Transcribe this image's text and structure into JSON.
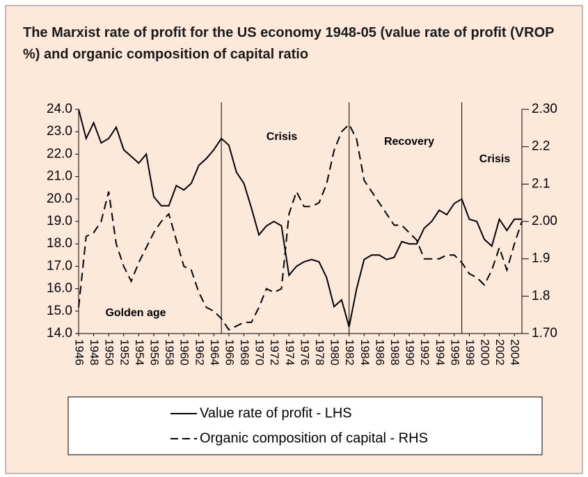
{
  "chart_data": {
    "type": "line",
    "title": "The Marxist rate of profit for the US economy 1948-05 (value rate of profit (VROP %) and organic composition of capital ratio",
    "x": [
      1946,
      1947,
      1948,
      1949,
      1950,
      1951,
      1952,
      1953,
      1954,
      1955,
      1956,
      1957,
      1958,
      1959,
      1960,
      1961,
      1962,
      1963,
      1964,
      1965,
      1966,
      1967,
      1968,
      1969,
      1970,
      1971,
      1972,
      1973,
      1974,
      1975,
      1976,
      1977,
      1978,
      1979,
      1980,
      1981,
      1982,
      1983,
      1984,
      1985,
      1986,
      1987,
      1988,
      1989,
      1990,
      1991,
      1992,
      1993,
      1994,
      1995,
      1996,
      1997,
      1998,
      1999,
      2000,
      2001,
      2002,
      2003,
      2004,
      2005
    ],
    "xlim": [
      1946,
      2005
    ],
    "xticks": [
      1946,
      1948,
      1950,
      1952,
      1954,
      1956,
      1958,
      1960,
      1962,
      1964,
      1966,
      1968,
      1970,
      1972,
      1974,
      1976,
      1978,
      1980,
      1982,
      1984,
      1986,
      1988,
      1990,
      1992,
      1994,
      1996,
      1998,
      2000,
      2002,
      2004
    ],
    "series": [
      {
        "name": "Value rate of profit - LHS",
        "color": "#000000",
        "linestyle": "solid",
        "values": [
          24.0,
          22.7,
          23.4,
          22.5,
          22.7,
          23.2,
          22.2,
          21.9,
          21.6,
          22.0,
          20.1,
          19.7,
          19.7,
          20.6,
          20.4,
          20.7,
          21.5,
          21.8,
          22.2,
          22.7,
          22.4,
          21.2,
          20.7,
          19.6,
          18.4,
          18.8,
          19.0,
          18.8,
          16.6,
          17.0,
          17.2,
          17.3,
          17.2,
          16.5,
          15.2,
          15.5,
          14.3,
          16.0,
          17.3,
          17.5,
          17.5,
          17.3,
          17.4,
          18.1,
          18.0,
          18.0,
          18.7,
          19.0,
          19.5,
          19.3,
          19.8,
          20.0,
          19.1,
          19.0,
          18.2,
          17.9,
          19.1,
          18.6,
          19.1,
          19.1
        ]
      },
      {
        "name": "Organic composition of capital - RHS",
        "color": "#000000",
        "linestyle": "dashed",
        "axis": "y2",
        "values": [
          1.77,
          1.96,
          1.97,
          2.0,
          2.08,
          1.94,
          1.88,
          1.84,
          1.89,
          1.93,
          1.97,
          2.0,
          2.02,
          1.95,
          1.88,
          1.87,
          1.81,
          1.77,
          1.76,
          1.74,
          1.71,
          1.72,
          1.73,
          1.73,
          1.77,
          1.82,
          1.81,
          1.82,
          2.02,
          2.08,
          2.04,
          2.04,
          2.05,
          2.1,
          2.19,
          2.24,
          2.26,
          2.22,
          2.11,
          2.08,
          2.05,
          2.02,
          1.99,
          1.99,
          1.97,
          1.95,
          1.9,
          1.9,
          1.9,
          1.91,
          1.91,
          1.89,
          1.86,
          1.85,
          1.83,
          1.87,
          1.93,
          1.87,
          1.94,
          2.0
        ]
      }
    ],
    "ylim": [
      14,
      24
    ],
    "yticks": [
      {
        "value": 14,
        "label": "14.0"
      },
      {
        "value": 15,
        "label": "15.0"
      },
      {
        "value": 16,
        "label": "16.0"
      },
      {
        "value": 17,
        "label": "17.0"
      },
      {
        "value": 18,
        "label": "18.0"
      },
      {
        "value": 19,
        "label": "19.0"
      },
      {
        "value": 20,
        "label": "20.0"
      },
      {
        "value": 21,
        "label": "21.0"
      },
      {
        "value": 22,
        "label": "22.0"
      },
      {
        "value": 23,
        "label": "23.0"
      },
      {
        "value": 24,
        "label": "24.0"
      }
    ],
    "y2lim": [
      1.7,
      2.3
    ],
    "y2ticks": [
      {
        "value": 1.7,
        "label": "1.70"
      },
      1.8,
      1.9,
      {
        "value": 2.0,
        "label": "2.00"
      },
      2.1,
      2.2,
      {
        "value": 2.3,
        "label": "2.30"
      }
    ],
    "vlines": [
      1965,
      1982,
      1997
    ],
    "annotations": [
      "Golden age",
      "Crisis",
      "Recovery",
      "Crisis"
    ],
    "legend": "bottom"
  }
}
